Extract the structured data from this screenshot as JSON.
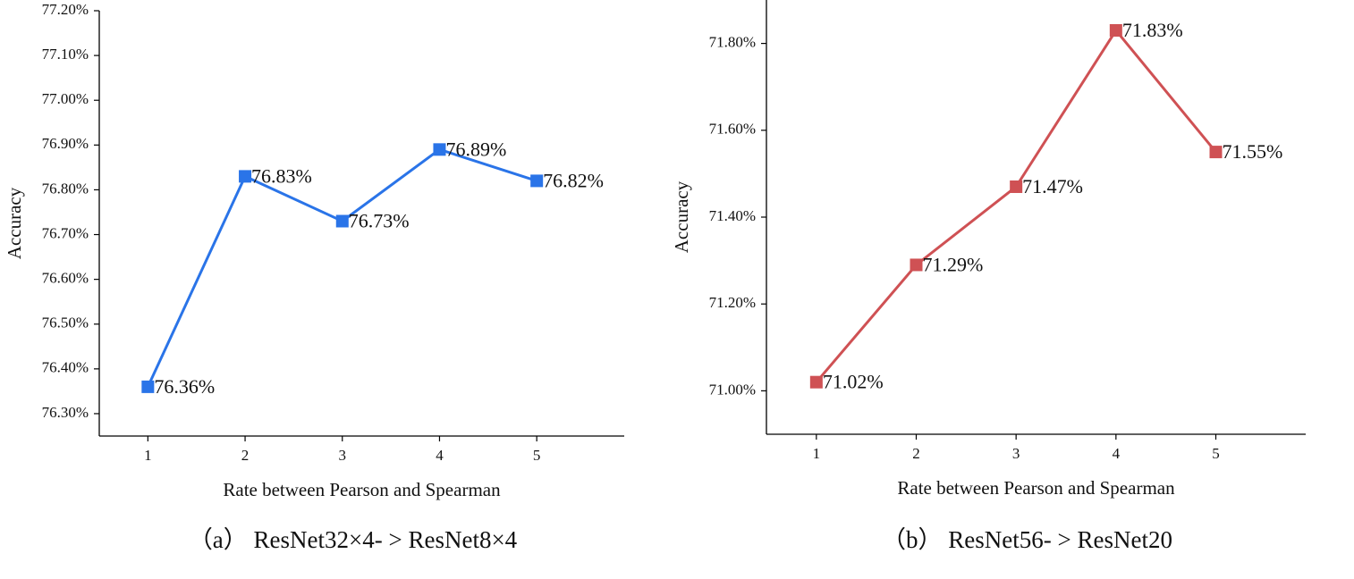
{
  "chart_data": [
    {
      "type": "line",
      "caption": "（a） ResNet32×4- > ResNet8×4",
      "xlabel": "Rate between Pearson and Spearman",
      "ylabel": "Accuracy",
      "x": [
        1,
        2,
        3,
        4,
        5
      ],
      "values": [
        76.36,
        76.83,
        76.73,
        76.89,
        76.82
      ],
      "value_labels": [
        "76.36%",
        "76.83%",
        "76.73%",
        "76.89%",
        "76.82%"
      ],
      "color": "#2a74e8",
      "xlim": [
        0.5,
        5.9
      ],
      "xticks": [
        1,
        2,
        3,
        4,
        5
      ],
      "ylim": [
        76.25,
        77.2
      ],
      "yticks": [
        {
          "value": 76.3,
          "label": "76.30%"
        },
        {
          "value": 76.4,
          "label": "76.40%"
        },
        {
          "value": 76.5,
          "label": "76.50%"
        },
        {
          "value": 76.6,
          "label": "76.60%"
        },
        {
          "value": 76.7,
          "label": "76.70%"
        },
        {
          "value": 76.8,
          "label": "76.80%"
        },
        {
          "value": 76.9,
          "label": "76.90%"
        },
        {
          "value": 77.0,
          "label": "77.00%"
        },
        {
          "value": 77.1,
          "label": "77.10%"
        },
        {
          "value": 77.2,
          "label": "77.20%"
        }
      ]
    },
    {
      "type": "line",
      "caption": "（b） ResNet56- > ResNet20",
      "xlabel": "Rate between Pearson and Spearman",
      "ylabel": "Accuracy",
      "x": [
        1,
        2,
        3,
        4,
        5
      ],
      "values": [
        71.02,
        71.29,
        71.47,
        71.83,
        71.55
      ],
      "value_labels": [
        "71.02%",
        "71.29%",
        "71.47%",
        "71.83%",
        "71.55%"
      ],
      "color": "#cf5154",
      "xlim": [
        0.5,
        5.9
      ],
      "xticks": [
        1,
        2,
        3,
        4,
        5
      ],
      "ylim": [
        70.9,
        71.9
      ],
      "yticks": [
        {
          "value": 71.0,
          "label": "71.00%"
        },
        {
          "value": 71.2,
          "label": "71.20%"
        },
        {
          "value": 71.4,
          "label": "71.40%"
        },
        {
          "value": 71.6,
          "label": "71.60%"
        },
        {
          "value": 71.8,
          "label": "71.80%"
        }
      ]
    }
  ]
}
